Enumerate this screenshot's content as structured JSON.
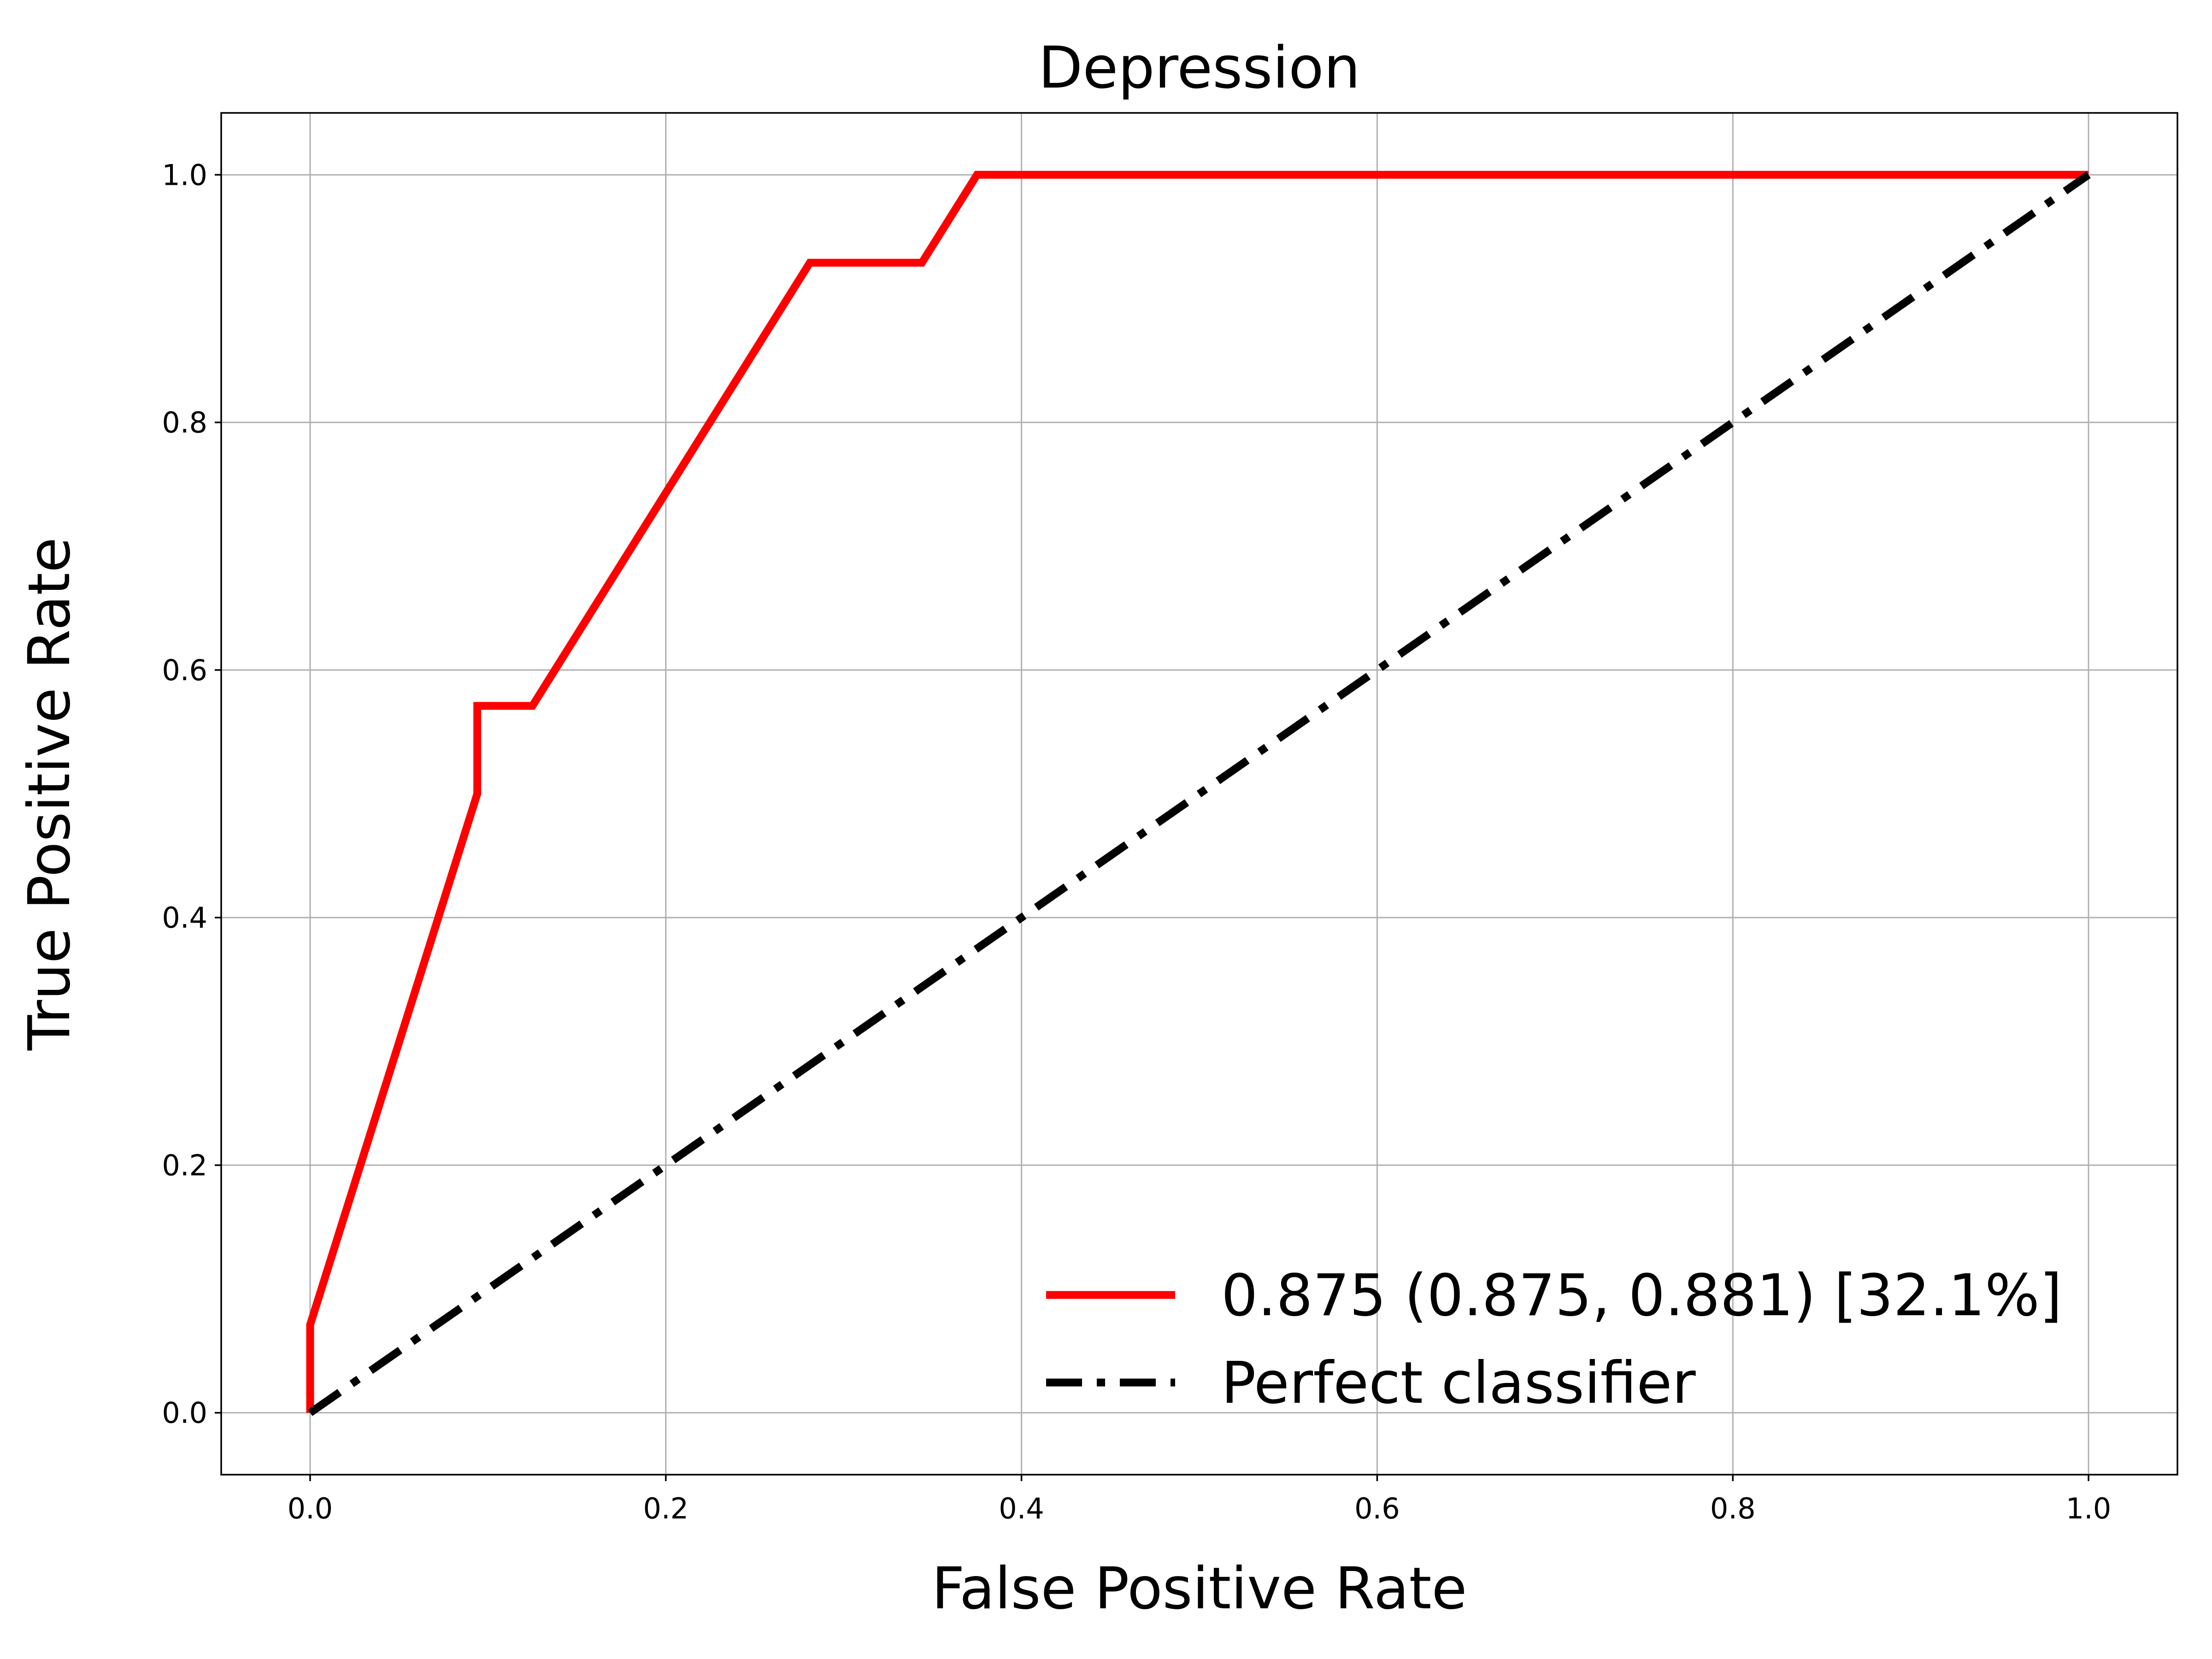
{
  "chart_data": {
    "type": "line",
    "title": "Depression",
    "xlabel": "False Positive Rate",
    "ylabel": "True Positive Rate",
    "xlim": [
      -0.05,
      1.05
    ],
    "ylim": [
      -0.05,
      1.05
    ],
    "xticks": [
      0.0,
      0.2,
      0.4,
      0.6,
      0.8,
      1.0
    ],
    "yticks": [
      0.0,
      0.2,
      0.4,
      0.6,
      0.8,
      1.0
    ],
    "xtick_labels": [
      "0.0",
      "0.2",
      "0.4",
      "0.6",
      "0.8",
      "1.0"
    ],
    "ytick_labels": [
      "0.0",
      "0.2",
      "0.4",
      "0.6",
      "0.8",
      "1.0"
    ],
    "grid": true,
    "legend_position": "lower-right",
    "series": [
      {
        "name": "0.875 (0.875, 0.881) [32.1%]",
        "color": "#ff0000",
        "style": "solid",
        "x": [
          0.0,
          0.0,
          0.094,
          0.094,
          0.125,
          0.281,
          0.344,
          0.375,
          1.0
        ],
        "y": [
          0.0,
          0.071,
          0.5,
          0.571,
          0.571,
          0.929,
          0.929,
          1.0,
          1.0
        ]
      },
      {
        "name": "Perfect classifier",
        "color": "#000000",
        "style": "dashdot",
        "x": [
          0.0,
          1.0
        ],
        "y": [
          0.0,
          1.0
        ]
      }
    ]
  }
}
